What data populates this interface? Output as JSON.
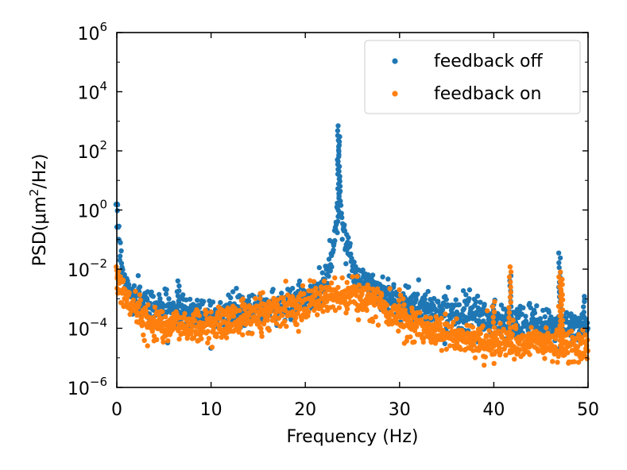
{
  "chart_data": {
    "type": "scatter",
    "title": "",
    "xlabel": "Frequency (Hz)",
    "ylabel": "PSD(μm²/Hz)",
    "ylabel_parts": {
      "main": "PSD(μm",
      "sup": "2",
      "tail": "/Hz)"
    },
    "xlim": [
      0,
      50
    ],
    "ylim": [
      1e-06,
      1000000.0
    ],
    "yscale": "log",
    "grid": false,
    "legend_position": "top-right",
    "x_ticks": [
      {
        "value": 0,
        "label": "0"
      },
      {
        "value": 10,
        "label": "10"
      },
      {
        "value": 20,
        "label": "20"
      },
      {
        "value": 30,
        "label": "30"
      },
      {
        "value": 40,
        "label": "40"
      },
      {
        "value": 50,
        "label": "50"
      }
    ],
    "y_ticks": [
      {
        "exp": -6,
        "base": "10",
        "sup": "−6"
      },
      {
        "exp": -4,
        "base": "10",
        "sup": "−4"
      },
      {
        "exp": -2,
        "base": "10",
        "sup": "−2"
      },
      {
        "exp": 0,
        "base": "10",
        "sup": "0"
      },
      {
        "exp": 2,
        "base": "10",
        "sup": "2"
      },
      {
        "exp": 4,
        "base": "10",
        "sup": "4"
      },
      {
        "exp": 6,
        "base": "10",
        "sup": "6"
      }
    ],
    "series": [
      {
        "name": "feedback off",
        "color": "#1f77b4",
        "point_count": 1200,
        "description": "approximate PSD envelope (log10 PSD) vs frequency; dense noisy points",
        "envelope": [
          [
            0.0,
            0.2
          ],
          [
            0.3,
            -1.3
          ],
          [
            0.8,
            -2.4
          ],
          [
            1.5,
            -2.9
          ],
          [
            3,
            -3.2
          ],
          [
            6,
            -3.4
          ],
          [
            10,
            -3.5
          ],
          [
            14,
            -3.4
          ],
          [
            18,
            -3.2
          ],
          [
            21,
            -2.9
          ],
          [
            22,
            -2.4
          ],
          [
            22.8,
            -1.6
          ],
          [
            23.3,
            -0.4
          ],
          [
            23.6,
            0.3
          ],
          [
            24.0,
            -0.6
          ],
          [
            24.6,
            -1.6
          ],
          [
            25.5,
            -2.2
          ],
          [
            27,
            -2.6
          ],
          [
            30,
            -3.1
          ],
          [
            34,
            -3.4
          ],
          [
            38,
            -3.6
          ],
          [
            42,
            -3.8
          ],
          [
            46,
            -3.9
          ],
          [
            50,
            -4.0
          ]
        ],
        "peaks": [
          {
            "x": 23.5,
            "y": 700
          },
          {
            "x": 23.6,
            "y": 300
          },
          {
            "x": 0.0,
            "y": 1.5
          },
          {
            "x": 6.5,
            "y": 0.004
          },
          {
            "x": 40.0,
            "y": 0.0009
          },
          {
            "x": 41.8,
            "y": 0.006
          },
          {
            "x": 47.0,
            "y": 0.035
          },
          {
            "x": 49.5,
            "y": 0.0012
          }
        ]
      },
      {
        "name": "feedback on",
        "color": "#ff7f0e",
        "point_count": 1200,
        "description": "approximate PSD envelope (log10 PSD) vs frequency; dense noisy points",
        "envelope": [
          [
            0.0,
            -2.3
          ],
          [
            0.5,
            -2.7
          ],
          [
            1.5,
            -3.2
          ],
          [
            3,
            -3.7
          ],
          [
            6,
            -3.9
          ],
          [
            10,
            -3.9
          ],
          [
            14,
            -3.6
          ],
          [
            18,
            -3.3
          ],
          [
            22,
            -3.0
          ],
          [
            25,
            -2.9
          ],
          [
            28,
            -3.2
          ],
          [
            31,
            -3.8
          ],
          [
            35,
            -4.2
          ],
          [
            40,
            -4.5
          ],
          [
            45,
            -4.5
          ],
          [
            50,
            -4.7
          ]
        ],
        "peaks": [
          {
            "x": 0.0,
            "y": 0.012
          },
          {
            "x": 41.7,
            "y": 0.012
          },
          {
            "x": 47.0,
            "y": 0.008
          },
          {
            "x": 47.2,
            "y": 0.0045
          },
          {
            "x": 40.0,
            "y": 0.0008
          },
          {
            "x": 15.3,
            "y": 0.0015
          },
          {
            "x": 30.0,
            "y": 0.002
          }
        ]
      }
    ]
  }
}
